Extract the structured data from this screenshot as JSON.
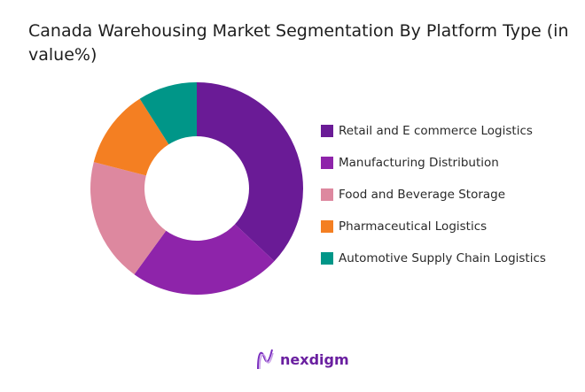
{
  "chart_data": {
    "type": "pie",
    "donut": true,
    "title": "Canada Warehousing Market Segmentation By Platform Type (in value%)",
    "categories": [
      "Retail and E commerce Logistics",
      "Manufacturing Distribution",
      "Food and Beverage Storage",
      "Pharmaceutical Logistics",
      "Automotive Supply Chain Logistics"
    ],
    "values": [
      37,
      23,
      19,
      12,
      9
    ],
    "colors": [
      "#6a1b96",
      "#8e24aa",
      "#dd889f",
      "#f47f22",
      "#009688"
    ],
    "legend_position": "right"
  },
  "brand": {
    "name": "nexdigm"
  }
}
